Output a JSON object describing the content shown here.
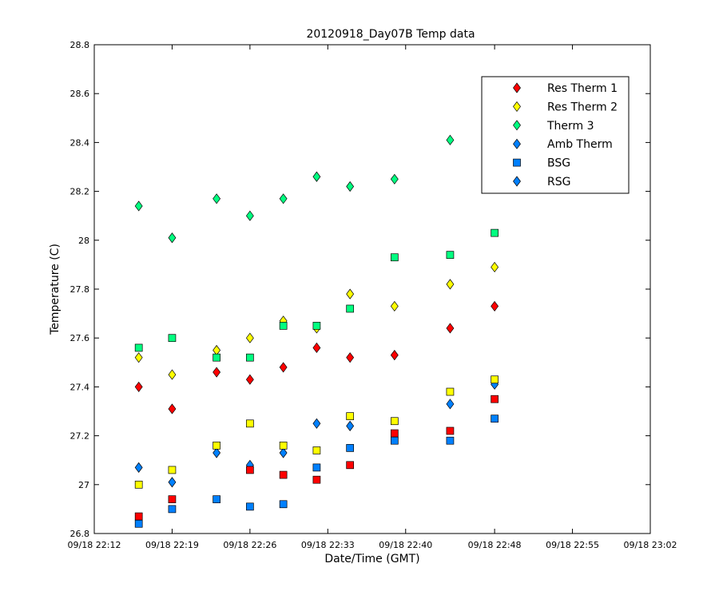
{
  "chart_data": {
    "type": "scatter",
    "title": "20120918_Day07B Temp data",
    "xlabel": "Date/Time (GMT)",
    "ylabel": "Temperature (C)",
    "x_ticks": [
      "09/18 22:12",
      "09/18 22:19",
      "09/18 22:26",
      "09/18 22:33",
      "09/18 22:40",
      "09/18 22:48",
      "09/18 22:55",
      "09/18 23:02"
    ],
    "y_ticks": [
      "26.8",
      "27",
      "27.2",
      "27.4",
      "27.6",
      "27.8",
      "28",
      "28.2",
      "28.4",
      "28.6",
      "28.8"
    ],
    "xlim": [
      "09/18 22:12",
      "09/18 23:02"
    ],
    "ylim": [
      26.8,
      28.8
    ],
    "legend_position": "top-right",
    "grid": false,
    "series": [
      {
        "name": "Res Therm 1",
        "marker": "diamond",
        "color": "#ff0000",
        "x": [
          "09/18 22:16",
          "09/18 22:19",
          "09/18 22:23",
          "09/18 22:26",
          "09/18 22:29",
          "09/18 22:32",
          "09/18 22:35",
          "09/18 22:39",
          "09/18 22:44",
          "09/18 22:48"
        ],
        "y": [
          27.4,
          27.31,
          27.46,
          27.43,
          27.48,
          27.56,
          27.52,
          27.53,
          27.64,
          27.73
        ]
      },
      {
        "name": "Res Therm 2",
        "marker": "diamond",
        "color": "#ffff00",
        "x": [
          "09/18 22:16",
          "09/18 22:19",
          "09/18 22:23",
          "09/18 22:26",
          "09/18 22:29",
          "09/18 22:32",
          "09/18 22:35",
          "09/18 22:39",
          "09/18 22:44",
          "09/18 22:48"
        ],
        "y": [
          27.52,
          27.45,
          27.55,
          27.6,
          27.67,
          27.64,
          27.78,
          27.73,
          27.82,
          27.89
        ]
      },
      {
        "name": "Therm 3",
        "marker": "diamond",
        "color": "#00ff80",
        "x": [
          "09/18 22:16",
          "09/18 22:19",
          "09/18 22:23",
          "09/18 22:26",
          "09/18 22:29",
          "09/18 22:32",
          "09/18 22:35",
          "09/18 22:39",
          "09/18 22:44"
        ],
        "y": [
          28.14,
          28.01,
          28.17,
          28.1,
          28.17,
          28.26,
          28.22,
          28.25,
          28.41
        ]
      },
      {
        "name": "Amb Therm",
        "marker": "diamond",
        "color": "#0080ff",
        "x": [
          "09/18 22:16",
          "09/18 22:19",
          "09/18 22:23",
          "09/18 22:26",
          "09/18 22:29",
          "09/18 22:32",
          "09/18 22:35",
          "09/18 22:39",
          "09/18 22:44",
          "09/18 22:48"
        ],
        "y": [
          27.07,
          27.01,
          27.13,
          27.08,
          27.13,
          27.25,
          27.24,
          27.19,
          27.33,
          27.41
        ]
      },
      {
        "name": "BSG",
        "marker": "square",
        "color": "#0080ff",
        "x": [
          "09/18 22:16",
          "09/18 22:19",
          "09/18 22:23",
          "09/18 22:26",
          "09/18 22:29",
          "09/18 22:32",
          "09/18 22:35",
          "09/18 22:39",
          "09/18 22:44",
          "09/18 22:48"
        ],
        "y": [
          26.84,
          26.9,
          26.94,
          26.91,
          26.92,
          27.07,
          27.15,
          27.18,
          27.18,
          27.27
        ]
      },
      {
        "name": "RSG",
        "marker": "diamond",
        "color": "#0080ff",
        "x": [],
        "y": []
      },
      {
        "name": "",
        "marker": "square",
        "color": "#ff0000",
        "x": [
          "09/18 22:16",
          "09/18 22:19",
          "09/18 22:26",
          "09/18 22:29",
          "09/18 22:32",
          "09/18 22:35",
          "09/18 22:39",
          "09/18 22:44",
          "09/18 22:48"
        ],
        "y": [
          26.87,
          26.94,
          27.06,
          27.04,
          27.02,
          27.08,
          27.21,
          27.22,
          27.35
        ]
      },
      {
        "name": "",
        "marker": "square",
        "color": "#ffff00",
        "x": [
          "09/18 22:16",
          "09/18 22:19",
          "09/18 22:23",
          "09/18 22:26",
          "09/18 22:29",
          "09/18 22:32",
          "09/18 22:35",
          "09/18 22:39",
          "09/18 22:44",
          "09/18 22:48"
        ],
        "y": [
          27.0,
          27.06,
          27.16,
          27.25,
          27.16,
          27.14,
          27.28,
          27.26,
          27.38,
          27.43
        ]
      },
      {
        "name": "",
        "marker": "square",
        "color": "#00ff80",
        "x": [
          "09/18 22:16",
          "09/18 22:19",
          "09/18 22:23",
          "09/18 22:26",
          "09/18 22:29",
          "09/18 22:32",
          "09/18 22:35",
          "09/18 22:39",
          "09/18 22:44",
          "09/18 22:48"
        ],
        "y": [
          27.56,
          27.6,
          27.52,
          27.52,
          27.65,
          27.65,
          27.72,
          27.93,
          27.94,
          28.03
        ]
      }
    ]
  }
}
